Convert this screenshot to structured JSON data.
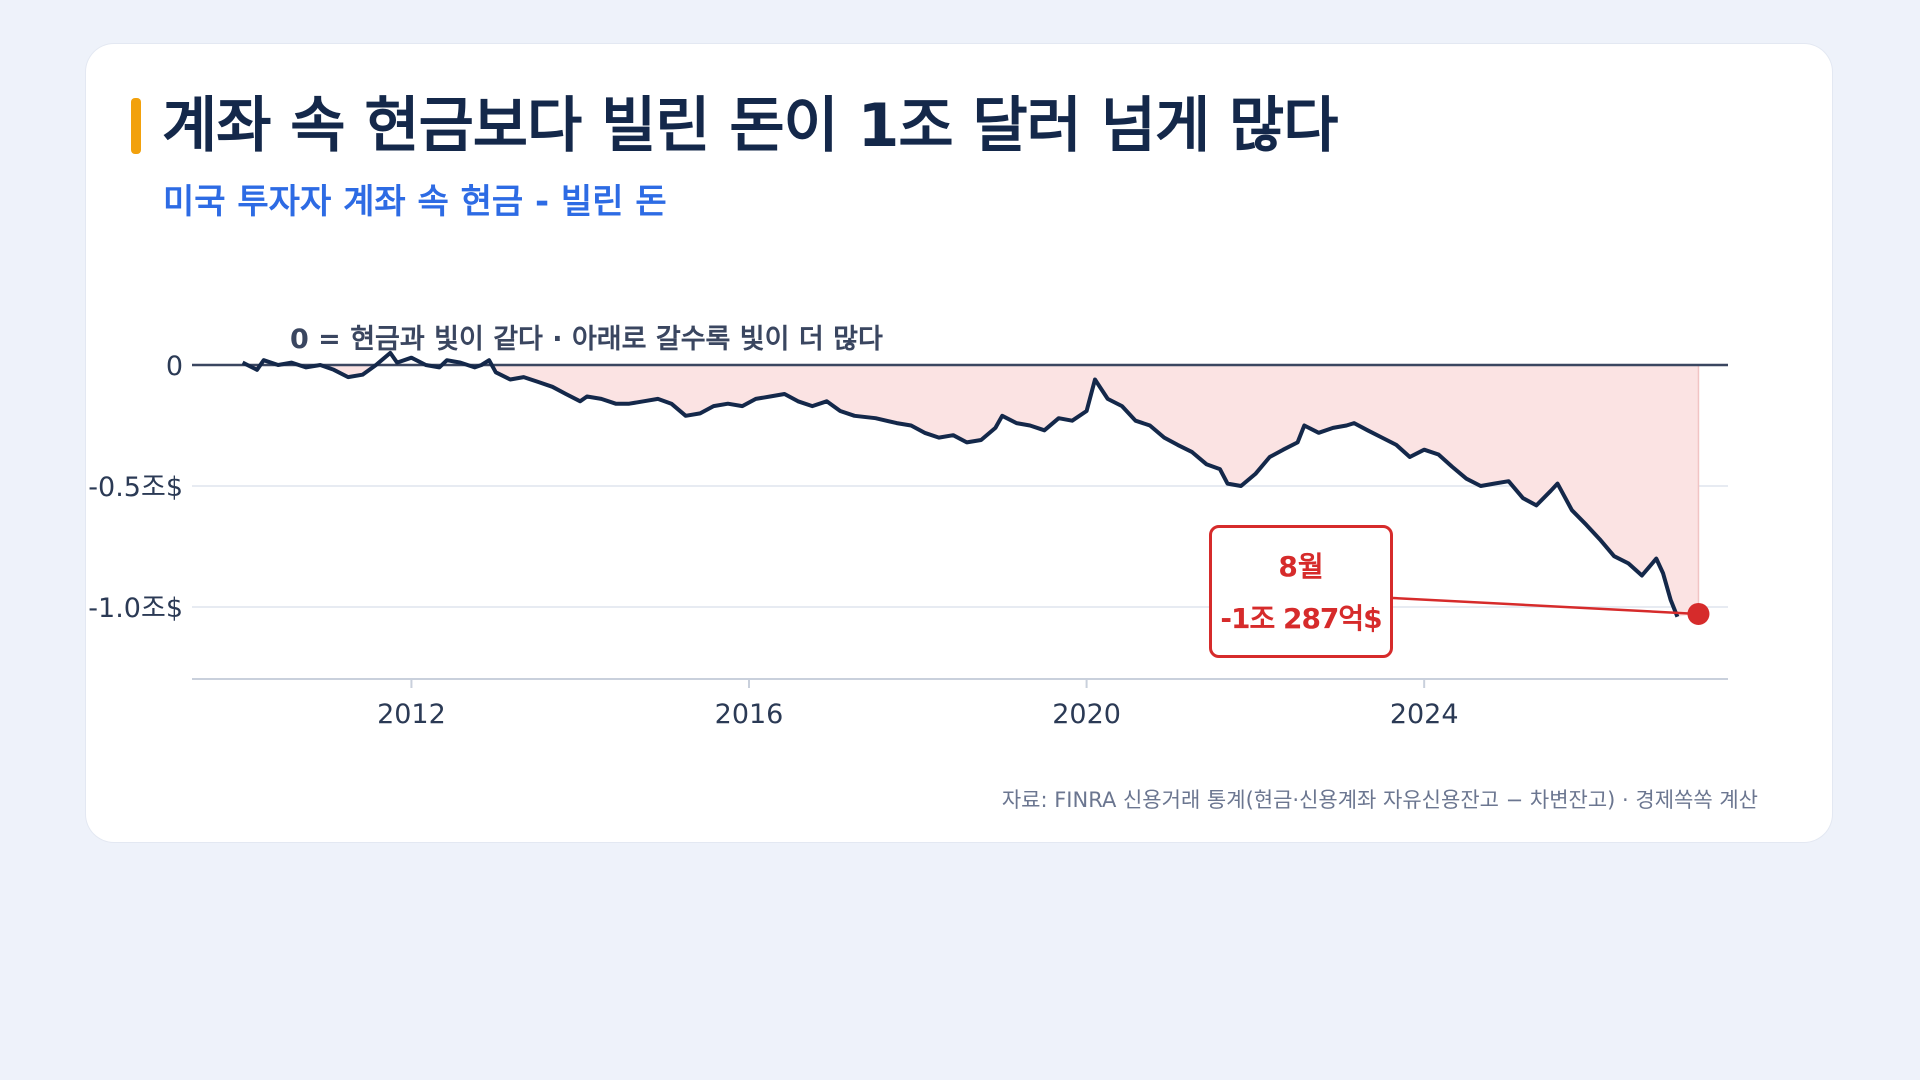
{
  "header": {
    "title": "계좌 속 현금보다 빌린 돈이 1조 달러 넘게 많다",
    "subtitle": "미국 투자자 계좌 속 현금 - 빌린 돈"
  },
  "colors": {
    "accent": "#f2a10c",
    "title": "#14284a",
    "subtitle": "#2d6be4",
    "line": "#14284a",
    "area": "#fbe3e3",
    "highlight": "#d62b2b",
    "grid": "#e7ebf2",
    "zero_line": "#3a4660"
  },
  "chart_data": {
    "type": "area",
    "title": "계좌 속 현금보다 빌린 돈이 1조 달러 넘게 많다",
    "subtitle": "미국 투자자 계좌 속 현금 - 빌린 돈",
    "unit": "조$",
    "xlim": [
      2009.4,
      2027.6
    ],
    "ylim": [
      -1.3,
      0.05
    ],
    "x_ticks": [
      2012,
      2016,
      2020,
      2024
    ],
    "x_tick_labels": [
      "2012",
      "2016",
      "2020",
      "2024"
    ],
    "y_ticks": [
      0,
      -0.5,
      -1.0
    ],
    "y_tick_labels": [
      "0",
      "-0.5조$",
      "-1.0조$"
    ],
    "grid": true,
    "reference_line": {
      "y": 0,
      "label": "0 = 현금과 빛이 같다 · 아래로 갈수록 빛이 더 많다"
    },
    "series": [
      {
        "values": [
          [
            2010.0,
            0.01
          ],
          [
            2010.17,
            -0.02
          ],
          [
            2010.25,
            0.02
          ],
          [
            2010.42,
            0.0
          ],
          [
            2010.58,
            0.01
          ],
          [
            2010.75,
            -0.01
          ],
          [
            2010.92,
            0.0
          ],
          [
            2011.08,
            -0.02
          ],
          [
            2011.25,
            -0.05
          ],
          [
            2011.42,
            -0.04
          ],
          [
            2011.58,
            0.0
          ],
          [
            2011.75,
            0.05
          ],
          [
            2011.83,
            0.01
          ],
          [
            2012.0,
            0.03
          ],
          [
            2012.17,
            0.0
          ],
          [
            2012.33,
            -0.01
          ],
          [
            2012.42,
            0.02
          ],
          [
            2012.58,
            0.01
          ],
          [
            2012.75,
            -0.01
          ],
          [
            2012.83,
            0.0
          ],
          [
            2012.92,
            0.02
          ],
          [
            2013.0,
            -0.03
          ],
          [
            2013.17,
            -0.06
          ],
          [
            2013.33,
            -0.05
          ],
          [
            2013.5,
            -0.07
          ],
          [
            2013.67,
            -0.09
          ],
          [
            2013.83,
            -0.12
          ],
          [
            2014.0,
            -0.15
          ],
          [
            2014.08,
            -0.13
          ],
          [
            2014.25,
            -0.14
          ],
          [
            2014.42,
            -0.16
          ],
          [
            2014.58,
            -0.16
          ],
          [
            2014.75,
            -0.15
          ],
          [
            2014.92,
            -0.14
          ],
          [
            2015.08,
            -0.16
          ],
          [
            2015.25,
            -0.21
          ],
          [
            2015.42,
            -0.2
          ],
          [
            2015.58,
            -0.17
          ],
          [
            2015.75,
            -0.16
          ],
          [
            2015.92,
            -0.17
          ],
          [
            2016.08,
            -0.14
          ],
          [
            2016.25,
            -0.13
          ],
          [
            2016.42,
            -0.12
          ],
          [
            2016.58,
            -0.15
          ],
          [
            2016.75,
            -0.17
          ],
          [
            2016.92,
            -0.15
          ],
          [
            2017.08,
            -0.19
          ],
          [
            2017.25,
            -0.21
          ],
          [
            2017.5,
            -0.22
          ],
          [
            2017.75,
            -0.24
          ],
          [
            2017.92,
            -0.25
          ],
          [
            2018.08,
            -0.28
          ],
          [
            2018.25,
            -0.3
          ],
          [
            2018.42,
            -0.29
          ],
          [
            2018.58,
            -0.32
          ],
          [
            2018.75,
            -0.31
          ],
          [
            2018.92,
            -0.26
          ],
          [
            2019.0,
            -0.21
          ],
          [
            2019.17,
            -0.24
          ],
          [
            2019.33,
            -0.25
          ],
          [
            2019.5,
            -0.27
          ],
          [
            2019.67,
            -0.22
          ],
          [
            2019.83,
            -0.23
          ],
          [
            2020.0,
            -0.19
          ],
          [
            2020.1,
            -0.06
          ],
          [
            2020.25,
            -0.14
          ],
          [
            2020.42,
            -0.17
          ],
          [
            2020.58,
            -0.23
          ],
          [
            2020.75,
            -0.25
          ],
          [
            2020.92,
            -0.3
          ],
          [
            2021.08,
            -0.33
          ],
          [
            2021.25,
            -0.36
          ],
          [
            2021.42,
            -0.41
          ],
          [
            2021.58,
            -0.43
          ],
          [
            2021.67,
            -0.49
          ],
          [
            2021.83,
            -0.5
          ],
          [
            2022.0,
            -0.45
          ],
          [
            2022.17,
            -0.38
          ],
          [
            2022.33,
            -0.35
          ],
          [
            2022.5,
            -0.32
          ],
          [
            2022.58,
            -0.25
          ],
          [
            2022.75,
            -0.28
          ],
          [
            2022.92,
            -0.26
          ],
          [
            2023.08,
            -0.25
          ],
          [
            2023.17,
            -0.24
          ],
          [
            2023.33,
            -0.27
          ],
          [
            2023.5,
            -0.3
          ],
          [
            2023.67,
            -0.33
          ],
          [
            2023.83,
            -0.38
          ],
          [
            2024.0,
            -0.35
          ],
          [
            2024.17,
            -0.37
          ],
          [
            2024.33,
            -0.42
          ],
          [
            2024.5,
            -0.47
          ],
          [
            2024.67,
            -0.5
          ],
          [
            2024.83,
            -0.49
          ],
          [
            2025.0,
            -0.48
          ],
          [
            2025.17,
            -0.55
          ],
          [
            2025.33,
            -0.58
          ],
          [
            2025.5,
            -0.52
          ],
          [
            2025.58,
            -0.49
          ],
          [
            2025.75,
            -0.6
          ],
          [
            2025.92,
            -0.66
          ],
          [
            2026.08,
            -0.72
          ],
          [
            2026.25,
            -0.79
          ],
          [
            2026.42,
            -0.82
          ],
          [
            2026.58,
            -0.87
          ],
          [
            2026.75,
            -0.8
          ],
          [
            2026.83,
            -0.86
          ],
          [
            2026.92,
            -0.97
          ],
          [
            2027.0,
            -1.04
          ]
        ]
      }
    ],
    "highlight": {
      "x": 2027.25,
      "y": -1.0287,
      "label": "8월",
      "value_label": "-1조 287억$"
    }
  },
  "footer": {
    "source": "자료: FINRA 신용거래 통계(현금·신용계좌 자유신용잔고 − 차변잔고) · 경제쏙쏙 계산"
  }
}
